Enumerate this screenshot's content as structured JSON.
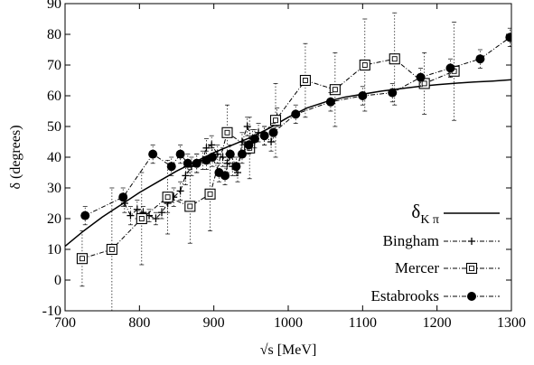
{
  "chart_data": {
    "type": "line",
    "xlabel": "√s [MeV]",
    "ylabel": "δ (degrees)",
    "xlim": [
      700,
      1300
    ],
    "ylim": [
      -10,
      90
    ],
    "xticks": [
      700,
      800,
      900,
      1000,
      1100,
      1200,
      1300
    ],
    "yticks": [
      -10,
      0,
      10,
      20,
      30,
      40,
      50,
      60,
      70,
      80,
      90
    ],
    "grid": false,
    "legend_position": "bottom-right",
    "colors": {
      "line": "#000000",
      "axes": "#000000",
      "background": "#ffffff"
    },
    "series": [
      {
        "name": "δ",
        "name_subscript": "K π",
        "style": "solid",
        "marker": "none",
        "x": [
          700,
          725,
          750,
          775,
          800,
          825,
          850,
          875,
          900,
          925,
          950,
          975,
          1000,
          1025,
          1050,
          1075,
          1100,
          1125,
          1150,
          1175,
          1200,
          1225,
          1250,
          1275,
          1300
        ],
        "y": [
          11,
          16,
          20.5,
          24.5,
          28.5,
          32,
          35.5,
          38.5,
          41.5,
          44,
          46.5,
          49.5,
          53,
          56,
          58,
          59.5,
          60.5,
          61.5,
          62.3,
          63,
          63.6,
          64.1,
          64.5,
          64.8,
          65.2
        ]
      },
      {
        "name": "Bingham",
        "style": "dashdot",
        "marker": "plus",
        "x": [
          780,
          788,
          797,
          805,
          813,
          822,
          830,
          838,
          846,
          855,
          862,
          870,
          877,
          885,
          890,
          897,
          905,
          912,
          918,
          925,
          932,
          938,
          945,
          952,
          960,
          968,
          977,
          985
        ],
        "y": [
          25,
          21,
          23,
          22,
          21,
          20,
          22,
          25,
          27,
          29,
          34,
          37,
          38,
          39,
          43,
          44,
          41,
          40,
          38,
          37,
          35,
          45,
          50,
          46,
          48,
          47,
          45,
          53
        ],
        "err": [
          3,
          3,
          3,
          2,
          2,
          2,
          2,
          3,
          3,
          3,
          3,
          3,
          3,
          3,
          3,
          3,
          3,
          3,
          3,
          3,
          3,
          3,
          3,
          3,
          3,
          3,
          3,
          3
        ]
      },
      {
        "name": "Mercer",
        "style": "dashdot",
        "marker": "square",
        "x": [
          723,
          763,
          803,
          838,
          868,
          895,
          918,
          948,
          983,
          1023,
          1063,
          1103,
          1143,
          1183,
          1223
        ],
        "y": [
          7,
          10,
          20,
          27,
          24,
          28,
          48,
          43,
          52,
          65,
          62,
          70,
          72,
          64,
          68
        ],
        "err": [
          9,
          20,
          15,
          12,
          12,
          12,
          9,
          10,
          12,
          12,
          12,
          15,
          15,
          10,
          16
        ]
      },
      {
        "name": "Estabrooks",
        "style": "dashdot",
        "marker": "circle",
        "x": [
          727,
          778,
          818,
          843,
          855,
          865,
          877,
          890,
          898,
          907,
          915,
          922,
          930,
          938,
          947,
          955,
          968,
          980,
          1010,
          1057,
          1100,
          1140,
          1178,
          1218,
          1258,
          1298
        ],
        "y": [
          21,
          27,
          41,
          37,
          41,
          38,
          38,
          39,
          40,
          35,
          34,
          41,
          37,
          41,
          44,
          46,
          47,
          48,
          54,
          58,
          60,
          61,
          66,
          69,
          72,
          79
        ],
        "err": [
          3,
          3,
          3,
          3,
          3,
          3,
          3,
          3,
          3,
          3,
          3,
          3,
          3,
          3,
          3,
          3,
          3,
          3,
          3,
          3,
          3,
          3,
          3,
          3,
          3,
          3
        ]
      }
    ]
  }
}
